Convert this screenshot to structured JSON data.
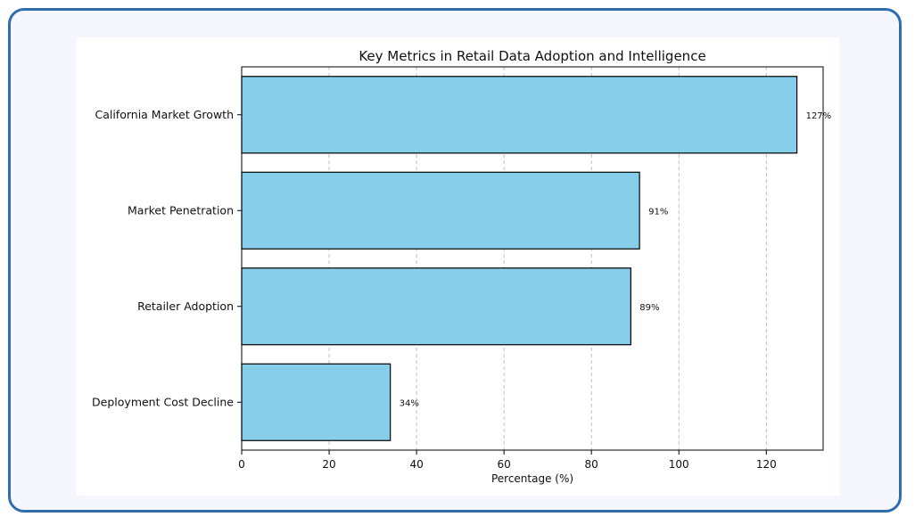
{
  "chart_data": {
    "type": "bar",
    "orientation": "horizontal",
    "title": "Key Metrics in Retail Data Adoption and Intelligence",
    "xlabel": "Percentage (%)",
    "ylabel": "",
    "categories": [
      "California Market Growth",
      "Market Penetration",
      "Retailer Adoption",
      "Deployment Cost Decline"
    ],
    "values": [
      127,
      91,
      89,
      34
    ],
    "value_labels": [
      "127%",
      "91%",
      "89%",
      "34%"
    ],
    "xlim": [
      0,
      133
    ],
    "xticks": [
      0,
      20,
      40,
      60,
      80,
      100,
      120
    ],
    "grid": "x-dashed",
    "bar_color": "#87ceeb",
    "edge_color": "#000000"
  }
}
